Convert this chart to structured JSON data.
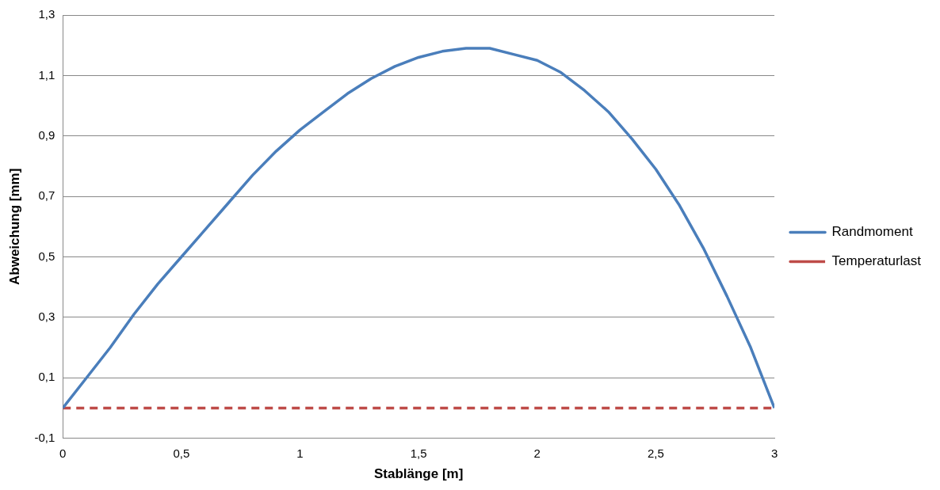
{
  "chart_data": {
    "type": "line",
    "xlabel": "Stablänge [m]",
    "ylabel": "Abweichung [mm]",
    "xlim": [
      0,
      3
    ],
    "xticks": [
      0,
      {
        "value": 0.5,
        "label": "0,5"
      },
      1,
      {
        "value": 1.5,
        "label": "1,5"
      },
      2,
      {
        "value": 2.5,
        "label": "2,5"
      },
      3
    ],
    "ylim": [
      -0.1,
      1.3
    ],
    "yticks": [
      {
        "value": -0.1,
        "label": "-0,1"
      },
      {
        "value": 0.1,
        "label": "0,1"
      },
      {
        "value": 0.3,
        "label": "0,3"
      },
      {
        "value": 0.5,
        "label": "0,5"
      },
      {
        "value": 0.7,
        "label": "0,7"
      },
      {
        "value": 0.9,
        "label": "0,9"
      },
      {
        "value": 1.1,
        "label": "1,1"
      },
      {
        "value": 1.3,
        "label": "1,3"
      }
    ],
    "grid": "y",
    "legend": "right",
    "marker": "none",
    "series": [
      {
        "name": "Randmoment",
        "color": "#4a7ebb",
        "line_style": "solid",
        "x": [
          0,
          0.1,
          0.2,
          0.3,
          0.4,
          0.5,
          0.6,
          0.7,
          0.8,
          0.9,
          1,
          1.1,
          1.2,
          1.3,
          1.4,
          1.5,
          1.6,
          1.7,
          1.8,
          1.9,
          2,
          2.1,
          2.2,
          2.3,
          2.4,
          2.5,
          2.6,
          2.7,
          2.8,
          2.9,
          3
        ],
        "values": [
          0,
          0.1,
          0.2,
          0.31,
          0.41,
          0.5,
          0.59,
          0.68,
          0.77,
          0.85,
          0.92,
          0.98,
          1.04,
          1.09,
          1.13,
          1.16,
          1.18,
          1.19,
          1.19,
          1.17,
          1.15,
          1.11,
          1.05,
          0.98,
          0.89,
          0.79,
          0.67,
          0.53,
          0.37,
          0.2,
          0
        ]
      },
      {
        "name": "Temperaturlast",
        "color": "#be4b48",
        "line_style": "dashed",
        "x": [
          0,
          3
        ],
        "values": [
          0,
          0
        ]
      }
    ]
  }
}
